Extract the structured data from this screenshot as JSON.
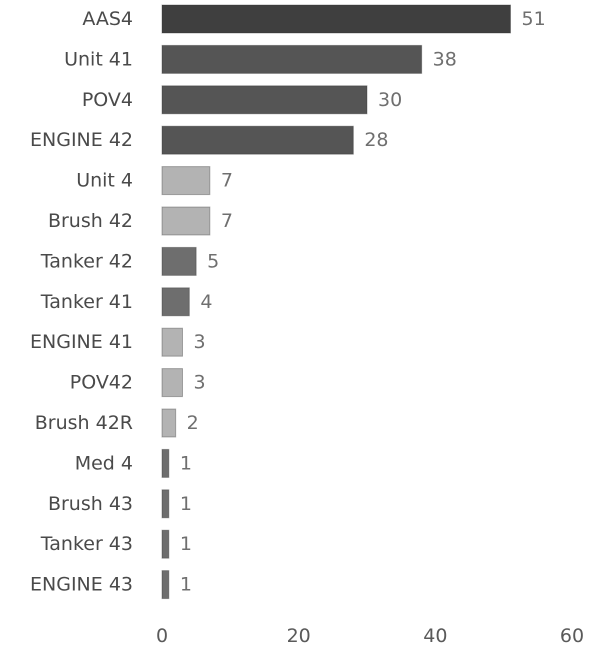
{
  "chart_data": {
    "type": "bar",
    "orientation": "horizontal",
    "title": "",
    "xlabel": "",
    "ylabel": "",
    "xlim": [
      0,
      60
    ],
    "xticks": [
      0,
      20,
      40,
      60
    ],
    "grid": false,
    "legend": "none",
    "categories": [
      "AAS4",
      "Unit 41",
      "POV4",
      "ENGINE 42",
      "Unit 4",
      "Brush 42",
      "Tanker 42",
      "Tanker 41",
      "ENGINE 41",
      "POV42",
      "Brush 42R",
      "Med 4",
      "Brush 43",
      "Tanker 43",
      "ENGINE 43"
    ],
    "values": [
      51,
      38,
      30,
      28,
      7,
      7,
      5,
      4,
      3,
      3,
      2,
      1,
      1,
      1,
      1
    ],
    "colors": [
      "#3f3f3f",
      "#555555",
      "#555555",
      "#555555",
      "#b3b3b3",
      "#b3b3b3",
      "#6e6e6e",
      "#6e6e6e",
      "#b3b3b3",
      "#b3b3b3",
      "#b3b3b3",
      "#6e6e6e",
      "#6e6e6e",
      "#6e6e6e",
      "#6e6e6e"
    ]
  }
}
